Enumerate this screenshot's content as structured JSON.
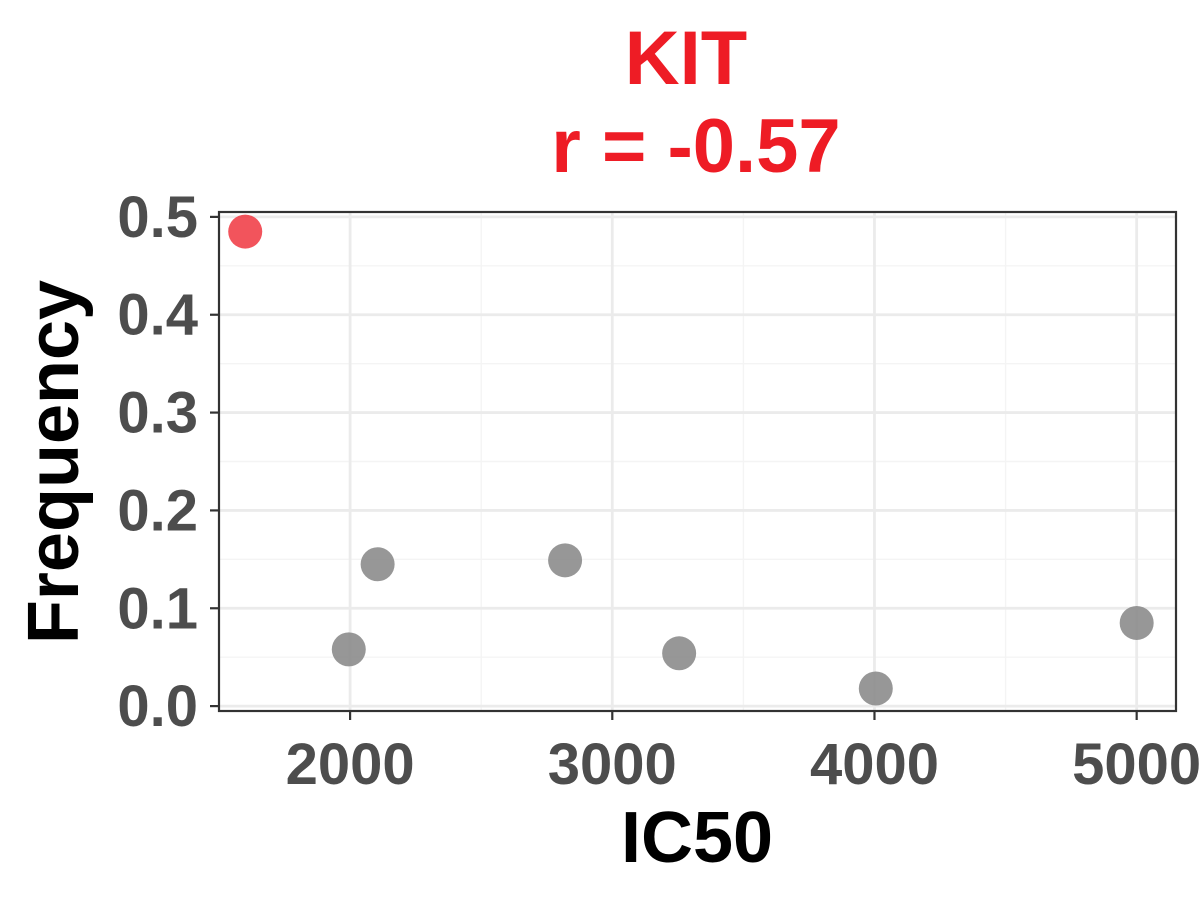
{
  "chart_data": {
    "type": "scatter",
    "title": "KIT",
    "subtitle": "r = -0.57",
    "xlabel": "IC50",
    "ylabel": "Frequency",
    "xlim": [
      1500,
      5150
    ],
    "ylim": [
      -0.005,
      0.505
    ],
    "x_ticks": [
      2000,
      3000,
      4000,
      5000
    ],
    "x_tick_labels": [
      "2000",
      "3000",
      "4000",
      "5000"
    ],
    "x_minor_ticks": [
      2500,
      3500,
      4500
    ],
    "y_ticks": [
      0.0,
      0.1,
      0.2,
      0.3,
      0.4,
      0.5
    ],
    "y_tick_labels": [
      "0.0",
      "0.1",
      "0.2",
      "0.3",
      "0.4",
      "0.5"
    ],
    "y_minor_ticks": [
      0.05,
      0.15,
      0.25,
      0.35,
      0.45
    ],
    "grid": true,
    "points": [
      {
        "x": 1600,
        "y": 0.485,
        "highlight": true
      },
      {
        "x": 1995,
        "y": 0.058,
        "highlight": false
      },
      {
        "x": 2105,
        "y": 0.145,
        "highlight": false
      },
      {
        "x": 2820,
        "y": 0.149,
        "highlight": false
      },
      {
        "x": 3255,
        "y": 0.054,
        "highlight": false
      },
      {
        "x": 4005,
        "y": 0.018,
        "highlight": false
      },
      {
        "x": 5000,
        "y": 0.085,
        "highlight": false
      }
    ]
  },
  "colors": {
    "title": "#ee1c25",
    "highlight_point": "#f03640",
    "point": "#8c8c8c",
    "grid_major": "#ebebeb",
    "grid_minor": "#f4f4f4",
    "panel_border": "#333333",
    "tick_text": "#4d4d4d"
  }
}
